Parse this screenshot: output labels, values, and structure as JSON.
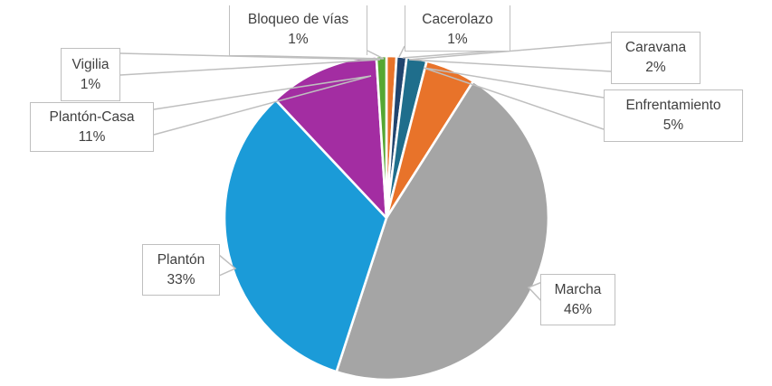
{
  "chart_data": {
    "type": "pie",
    "title": "",
    "unit": "%",
    "start_angle_deg": 0,
    "direction": "clockwise",
    "legend": "none",
    "label_style": "callout boxes with leader lines",
    "categories": [
      "Bloqueo de vías",
      "Cacerolazo",
      "Caravana",
      "Enfrentamiento",
      "Marcha",
      "Plantón",
      "Plantón-Casa",
      "Vigilia"
    ],
    "values": [
      1,
      1,
      2,
      5,
      46,
      33,
      11,
      1
    ],
    "slices": [
      {
        "label": "Bloqueo de vías",
        "pct": 1,
        "value_text": "1%",
        "color": "#E8732A"
      },
      {
        "label": "Cacerolazo",
        "pct": 1,
        "value_text": "1%",
        "color": "#21456F"
      },
      {
        "label": "Caravana",
        "pct": 2,
        "value_text": "2%",
        "color": "#1F6E8C"
      },
      {
        "label": "Enfrentamiento",
        "pct": 5,
        "value_text": "5%",
        "color": "#E8732A"
      },
      {
        "label": "Marcha",
        "pct": 46,
        "value_text": "46%",
        "color": "#A5A5A5"
      },
      {
        "label": "Plantón",
        "pct": 33,
        "value_text": "33%",
        "color": "#1B9BD8"
      },
      {
        "label": "Plantón-Casa",
        "pct": 11,
        "value_text": "11%",
        "color": "#A32DA2"
      },
      {
        "label": "Vigilia",
        "pct": 1,
        "value_text": "1%",
        "color": "#56A733"
      }
    ]
  },
  "style": {
    "background": "#FFFFFF",
    "label_text_color": "#3F3F3F",
    "callout_border_color": "#BFBFBF",
    "slice_gap_color": "#FFFFFF"
  }
}
